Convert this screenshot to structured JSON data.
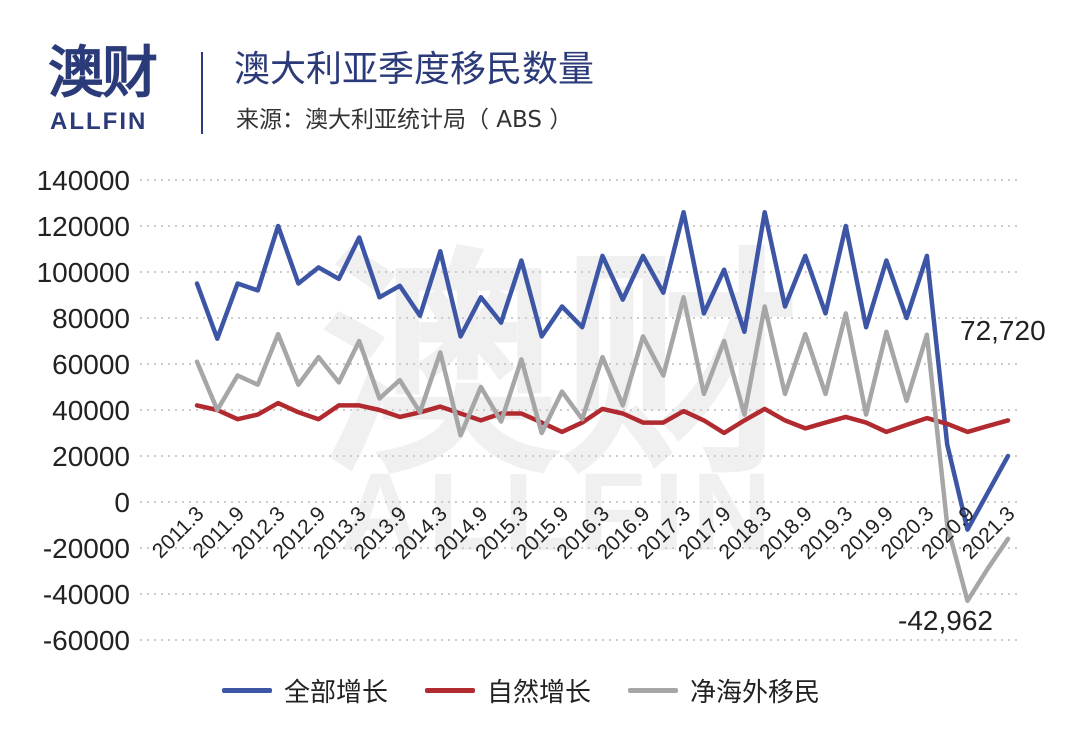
{
  "header": {
    "logo_cn": "澳财",
    "logo_en": "ALLFIN",
    "title": "澳大利亚季度移民数量",
    "source": "来源：澳大利亚统计局（ ABS ）"
  },
  "watermark": {
    "cn": "澳财",
    "en": "ALLFIN"
  },
  "colors": {
    "brand": "#2b3a78",
    "grid": "#cccccc",
    "watermark": "#f0f0f0"
  },
  "chart_data": {
    "type": "line",
    "x": [
      "2011.3",
      "2011.6",
      "2011.9",
      "2011.12",
      "2012.3",
      "2012.6",
      "2012.9",
      "2012.12",
      "2013.3",
      "2013.6",
      "2013.9",
      "2013.12",
      "2014.3",
      "2014.6",
      "2014.9",
      "2014.12",
      "2015.3",
      "2015.6",
      "2015.9",
      "2015.12",
      "2016.3",
      "2016.6",
      "2016.9",
      "2016.12",
      "2017.3",
      "2017.6",
      "2017.9",
      "2017.12",
      "2018.3",
      "2018.6",
      "2018.9",
      "2018.12",
      "2019.3",
      "2019.6",
      "2019.9",
      "2019.12",
      "2020.3",
      "2020.6",
      "2020.9",
      "2020.12",
      "2021.3"
    ],
    "tick_labels": [
      "2011.3",
      "2011.9",
      "2012.3",
      "2012.9",
      "2013.3",
      "2013.9",
      "2014.3",
      "2014.9",
      "2015.3",
      "2015.9",
      "2016.3",
      "2016.9",
      "2017.3",
      "2017.9",
      "2018.3",
      "2018.9",
      "2019.3",
      "2019.9",
      "2020.3",
      "2020.9",
      "2021.3"
    ],
    "ylim": [
      -60000,
      140000
    ],
    "yticks": [
      -60000,
      -40000,
      -20000,
      0,
      20000,
      40000,
      60000,
      80000,
      100000,
      120000,
      140000
    ],
    "grid": true,
    "legend_position": "bottom",
    "series": [
      {
        "name": "全部增长",
        "color": "#3c55a5",
        "values": [
          95000,
          71000,
          95000,
          92000,
          120000,
          95000,
          102000,
          97000,
          115000,
          89000,
          94000,
          81000,
          109000,
          72000,
          89000,
          78000,
          105000,
          72000,
          85000,
          76000,
          107000,
          88000,
          107000,
          91000,
          126000,
          82000,
          101000,
          74000,
          126000,
          85000,
          107000,
          82000,
          120000,
          76000,
          105000,
          80000,
          107000,
          25000,
          -12000,
          4000,
          20000
        ]
      },
      {
        "name": "自然增长",
        "color": "#b02a30",
        "values": [
          42000,
          40000,
          36000,
          38000,
          43000,
          39000,
          36000,
          42000,
          42000,
          40000,
          37000,
          39000,
          41500,
          38500,
          35500,
          38500,
          38500,
          34500,
          30500,
          34500,
          40500,
          38500,
          34500,
          34500,
          39500,
          35500,
          30000,
          35500,
          40500,
          35500,
          32000,
          34500,
          37000,
          34500,
          30500,
          33500,
          36500,
          34000,
          30500,
          33000,
          35500
        ]
      },
      {
        "name": "净海外移民",
        "color": "#a6a6a6",
        "values": [
          61000,
          40000,
          55000,
          51000,
          73000,
          51000,
          63000,
          52000,
          70000,
          45000,
          53000,
          39000,
          65000,
          29000,
          50000,
          35000,
          62000,
          30000,
          48000,
          36000,
          63000,
          42000,
          72000,
          55000,
          89000,
          47000,
          70000,
          38000,
          85000,
          47000,
          73000,
          47000,
          82000,
          38000,
          74000,
          44000,
          72720,
          -10000,
          -42962,
          -29000,
          -16000
        ]
      }
    ],
    "annotations": [
      {
        "text": "72,720",
        "series": 2,
        "index": 36
      },
      {
        "text": "-42,962",
        "series": 2,
        "index": 38
      }
    ]
  }
}
